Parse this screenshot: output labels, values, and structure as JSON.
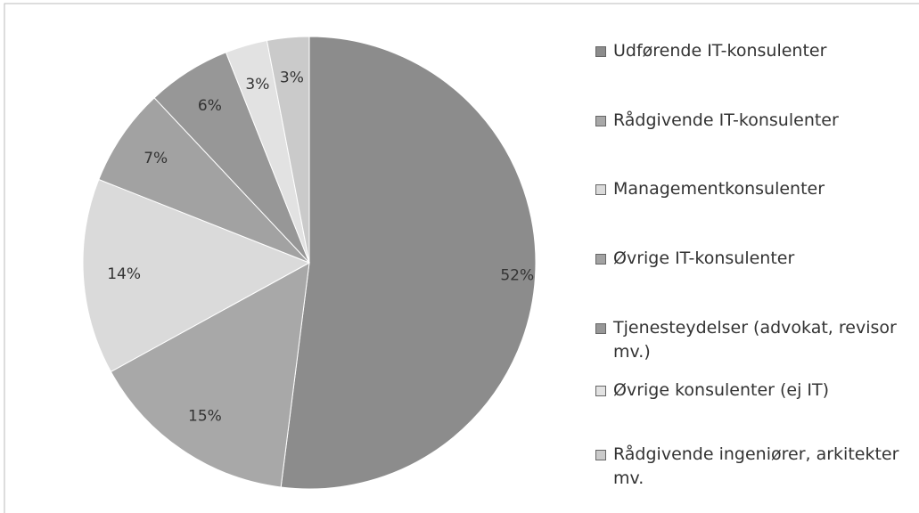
{
  "chart_data": {
    "type": "pie",
    "categories": [
      "Udførende IT-konsulenter",
      "Rådgivende IT-konsulenter",
      "Managementkonsulenter",
      "Øvrige IT-konsulenter",
      "Tjenesteydelser (advokat, revisor mv.)",
      "Øvrige konsulenter (ej IT)",
      "Rådgivende ingeniører, arkitekter mv."
    ],
    "values": [
      52,
      15,
      14,
      7,
      6,
      3,
      3
    ],
    "value_labels": [
      "52%",
      "15%",
      "14%",
      "7%",
      "6%",
      "3%",
      "3%"
    ],
    "colors": [
      "#8c8c8c",
      "#a8a8a8",
      "#dadada",
      "#a2a2a2",
      "#979797",
      "#e2e2e2",
      "#cacaca"
    ],
    "legend": "right"
  }
}
